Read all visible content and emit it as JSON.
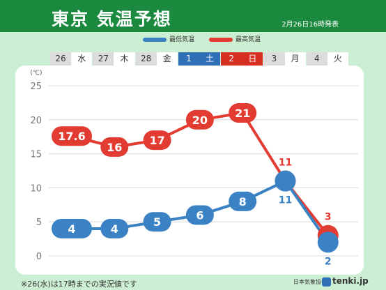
{
  "header": {
    "title": "東京 気温予想",
    "issued": "2月26日16時発表"
  },
  "legend": {
    "min_label": "最低気温",
    "max_label": "最高気温",
    "min_color": "#3a82c4",
    "max_color": "#e23b32"
  },
  "days": [
    {
      "num": "26",
      "wd": "水",
      "type": "weekday"
    },
    {
      "num": "27",
      "wd": "木",
      "type": "weekday"
    },
    {
      "num": "28",
      "wd": "金",
      "type": "weekday"
    },
    {
      "num": "1",
      "wd": "土",
      "type": "sat"
    },
    {
      "num": "2",
      "wd": "日",
      "type": "sun"
    },
    {
      "num": "3",
      "wd": "月",
      "type": "weekday"
    },
    {
      "num": "4",
      "wd": "火",
      "type": "weekday"
    }
  ],
  "chart_data": {
    "type": "line",
    "ylabel": "(℃)",
    "ylim": [
      0,
      25
    ],
    "yticks": [
      0,
      5,
      10,
      15,
      20,
      25
    ],
    "grid": true,
    "categories": [
      "26",
      "27",
      "28",
      "1",
      "2",
      "3",
      "4"
    ],
    "series": [
      {
        "name": "最高気温",
        "values": [
          17.6,
          16,
          17,
          20,
          21,
          11,
          3
        ],
        "labels": [
          "17.6",
          "16",
          "17",
          "20",
          "21",
          "11",
          "3"
        ]
      },
      {
        "name": "最低気温",
        "values": [
          4,
          4,
          5,
          6,
          8,
          11,
          2
        ],
        "labels": [
          "4",
          "4",
          "5",
          "6",
          "8",
          "11",
          "2"
        ]
      }
    ]
  },
  "footnote": "※26(水)は17時までの実況値です",
  "credit": "日本気象協会",
  "brand": "tenki.jp"
}
